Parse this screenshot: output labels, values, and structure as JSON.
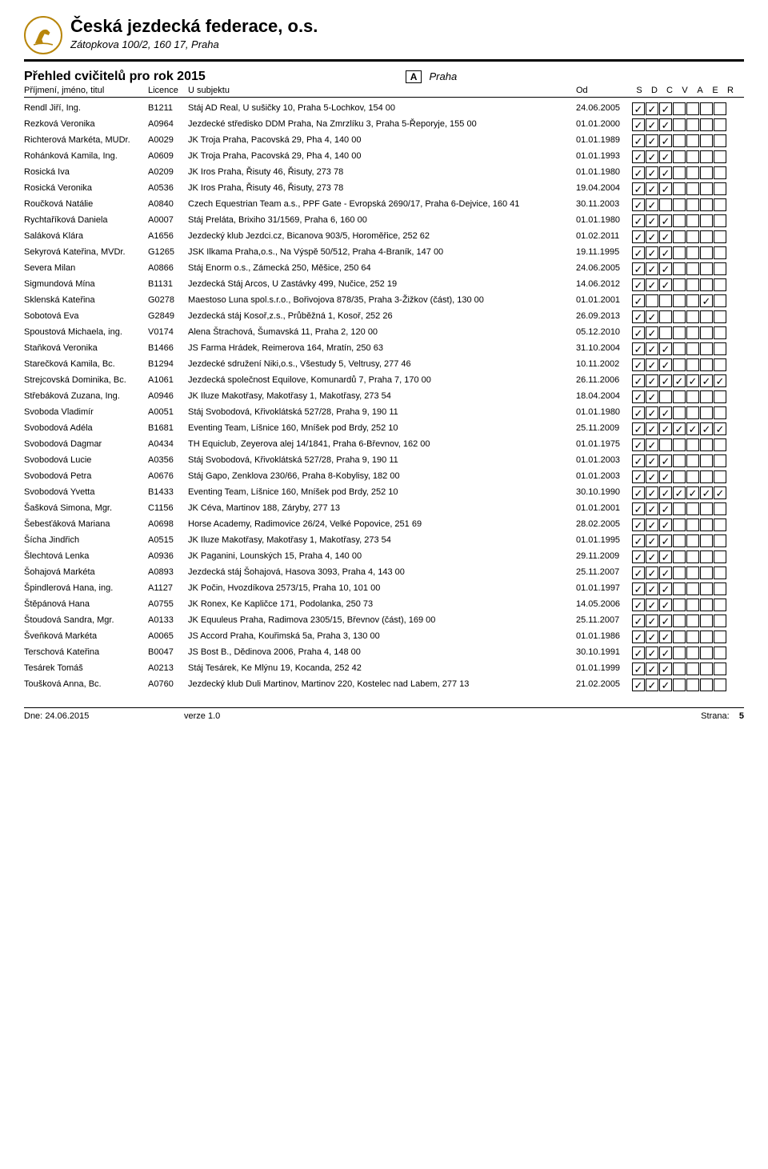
{
  "org": {
    "title": "Česká jezdecká federace, o.s.",
    "subtitle": "Zátopkova 100/2, 160 17, Praha"
  },
  "page": {
    "title": "Přehled cvičitelů pro rok 2015",
    "region_code": "A",
    "region_label": "Praha"
  },
  "columns": {
    "name": "Příjmení, jméno, titul",
    "licence": "Licence",
    "subject": "U subjektu",
    "od": "Od",
    "flags": [
      "S",
      "D",
      "C",
      "V",
      "A",
      "E",
      "R"
    ]
  },
  "rows": [
    {
      "name": "Rendl Jiří, Ing.",
      "lic": "B1211",
      "subj": "Stáj AD Real, U sušičky 10, Praha 5-Lochkov, 154 00",
      "od": "24.06.2005",
      "f": [
        1,
        1,
        1,
        0,
        0,
        0,
        0
      ]
    },
    {
      "name": "Rezková Veronika",
      "lic": "A0964",
      "subj": "Jezdecké středisko DDM Praha, Na Zmrzlíku 3, Praha 5-Řeporyje, 155 00",
      "od": "01.01.2000",
      "f": [
        1,
        1,
        1,
        0,
        0,
        0,
        0
      ]
    },
    {
      "name": "Richterová Markéta, MUDr.",
      "lic": "A0029",
      "subj": "JK Troja Praha, Pacovská 29, Pha 4, 140 00",
      "od": "01.01.1989",
      "f": [
        1,
        1,
        1,
        0,
        0,
        0,
        0
      ]
    },
    {
      "name": "Rohánková Kamila, Ing.",
      "lic": "A0609",
      "subj": "JK Troja Praha, Pacovská 29, Pha 4, 140 00",
      "od": "01.01.1993",
      "f": [
        1,
        1,
        1,
        0,
        0,
        0,
        0
      ]
    },
    {
      "name": "Rosická Iva",
      "lic": "A0209",
      "subj": "JK Iros Praha, Řisuty 46, Řisuty, 273 78",
      "od": "01.01.1980",
      "f": [
        1,
        1,
        1,
        0,
        0,
        0,
        0
      ]
    },
    {
      "name": "Rosická Veronika",
      "lic": "A0536",
      "subj": "JK Iros Praha, Řisuty 46, Řisuty, 273 78",
      "od": "19.04.2004",
      "f": [
        1,
        1,
        1,
        0,
        0,
        0,
        0
      ]
    },
    {
      "name": "Roučková Natálie",
      "lic": "A0840",
      "subj": "Czech Equestrian Team a.s., PPF Gate - Evropská 2690/17, Praha 6-Dejvice, 160 41",
      "od": "30.11.2003",
      "f": [
        1,
        1,
        0,
        0,
        0,
        0,
        0
      ]
    },
    {
      "name": "Rychtaříková Daniela",
      "lic": "A0007",
      "subj": "Stáj Preláta, Brixiho 31/1569, Praha 6, 160 00",
      "od": "01.01.1980",
      "f": [
        1,
        1,
        1,
        0,
        0,
        0,
        0
      ]
    },
    {
      "name": "Saláková Klára",
      "lic": "A1656",
      "subj": "Jezdecký klub Jezdci.cz, Bicanova 903/5, Horoměřice, 252 62",
      "od": "01.02.2011",
      "f": [
        1,
        1,
        1,
        0,
        0,
        0,
        0
      ]
    },
    {
      "name": "Sekyrová Kateřina, MVDr.",
      "lic": "G1265",
      "subj": "JSK Ilkama Praha,o.s., Na Výspě 50/512, Praha 4-Braník, 147 00",
      "od": "19.11.1995",
      "f": [
        1,
        1,
        1,
        0,
        0,
        0,
        0
      ]
    },
    {
      "name": "Severa Milan",
      "lic": "A0866",
      "subj": "Stáj Enorm o.s., Zámecká 250, Měšice, 250 64",
      "od": "24.06.2005",
      "f": [
        1,
        1,
        1,
        0,
        0,
        0,
        0
      ]
    },
    {
      "name": "Sigmundová Mína",
      "lic": "B1131",
      "subj": "Jezdecká Stáj Arcos, U Zastávky 499, Nučice, 252 19",
      "od": "14.06.2012",
      "f": [
        1,
        1,
        1,
        0,
        0,
        0,
        0
      ]
    },
    {
      "name": "Sklenská Kateřina",
      "lic": "G0278",
      "subj": "Maestoso Luna spol.s.r.o., Bořivojova 878/35, Praha 3-Žižkov (část), 130 00",
      "od": "01.01.2001",
      "f": [
        1,
        0,
        0,
        0,
        0,
        1,
        0
      ]
    },
    {
      "name": "Sobotová Eva",
      "lic": "G2849",
      "subj": "Jezdecká stáj Kosoř,z.s., Průběžná 1, Kosoř, 252 26",
      "od": "26.09.2013",
      "f": [
        1,
        1,
        0,
        0,
        0,
        0,
        0
      ]
    },
    {
      "name": "Spoustová Michaela, ing.",
      "lic": "V0174",
      "subj": "Alena Štrachová, Šumavská 11, Praha 2, 120 00",
      "od": "05.12.2010",
      "f": [
        1,
        1,
        0,
        0,
        0,
        0,
        0
      ]
    },
    {
      "name": "Staňková Veronika",
      "lic": "B1466",
      "subj": "JS Farma Hrádek, Reimerova 164, Mratín, 250 63",
      "od": "31.10.2004",
      "f": [
        1,
        1,
        1,
        0,
        0,
        0,
        0
      ]
    },
    {
      "name": "Starečková Kamila, Bc.",
      "lic": "B1294",
      "subj": "Jezdecké sdružení Niki,o.s., Všestudy 5, Veltrusy, 277 46",
      "od": "10.11.2002",
      "f": [
        1,
        1,
        1,
        0,
        0,
        0,
        0
      ]
    },
    {
      "name": "Strejcovská Dominika, Bc.",
      "lic": "A1061",
      "subj": "Jezdecká společnost Equilove, Komunardů 7, Praha 7, 170 00",
      "od": "26.11.2006",
      "f": [
        1,
        1,
        1,
        1,
        1,
        1,
        1
      ]
    },
    {
      "name": "Střebáková Zuzana, Ing.",
      "lic": "A0946",
      "subj": "JK Iluze Makotřasy, Makotřasy 1, Makotřasy, 273 54",
      "od": "18.04.2004",
      "f": [
        1,
        1,
        0,
        0,
        0,
        0,
        0
      ]
    },
    {
      "name": "Svoboda Vladimír",
      "lic": "A0051",
      "subj": "Stáj Svobodová, Křivoklátská 527/28, Praha 9, 190 11",
      "od": "01.01.1980",
      "f": [
        1,
        1,
        1,
        0,
        0,
        0,
        0
      ]
    },
    {
      "name": "Svobodová Adéla",
      "lic": "B1681",
      "subj": "Eventing Team, Líšnice 160, Mníšek pod Brdy, 252 10",
      "od": "25.11.2009",
      "f": [
        1,
        1,
        1,
        1,
        1,
        1,
        1
      ]
    },
    {
      "name": "Svobodová Dagmar",
      "lic": "A0434",
      "subj": "TH Equiclub, Zeyerova alej 14/1841, Praha 6-Břevnov, 162 00",
      "od": "01.01.1975",
      "f": [
        1,
        1,
        0,
        0,
        0,
        0,
        0
      ]
    },
    {
      "name": "Svobodová Lucie",
      "lic": "A0356",
      "subj": "Stáj Svobodová, Křivoklátská 527/28, Praha 9, 190 11",
      "od": "01.01.2003",
      "f": [
        1,
        1,
        1,
        0,
        0,
        0,
        0
      ]
    },
    {
      "name": "Svobodová Petra",
      "lic": "A0676",
      "subj": "Stáj Gapo, Zenklova 230/66, Praha 8-Kobylisy, 182 00",
      "od": "01.01.2003",
      "f": [
        1,
        1,
        1,
        0,
        0,
        0,
        0
      ]
    },
    {
      "name": "Svobodová Yvetta",
      "lic": "B1433",
      "subj": "Eventing Team, Líšnice 160, Mníšek pod Brdy, 252 10",
      "od": "30.10.1990",
      "f": [
        1,
        1,
        1,
        1,
        1,
        1,
        1
      ]
    },
    {
      "name": "Šašková Simona, Mgr.",
      "lic": "C1156",
      "subj": "JK Céva, Martinov 188, Záryby, 277 13",
      "od": "01.01.2001",
      "f": [
        1,
        1,
        1,
        0,
        0,
        0,
        0
      ]
    },
    {
      "name": "Šebesťáková Mariana",
      "lic": "A0698",
      "subj": "Horse Academy, Radimovice 26/24, Velké Popovice, 251 69",
      "od": "28.02.2005",
      "f": [
        1,
        1,
        1,
        0,
        0,
        0,
        0
      ]
    },
    {
      "name": "Šícha Jindřich",
      "lic": "A0515",
      "subj": "JK Iluze Makotřasy, Makotřasy 1, Makotřasy, 273 54",
      "od": "01.01.1995",
      "f": [
        1,
        1,
        1,
        0,
        0,
        0,
        0
      ]
    },
    {
      "name": "Šlechtová Lenka",
      "lic": "A0936",
      "subj": "JK Paganini, Lounských 15, Praha 4, 140 00",
      "od": "29.11.2009",
      "f": [
        1,
        1,
        1,
        0,
        0,
        0,
        0
      ]
    },
    {
      "name": "Šohajová Markéta",
      "lic": "A0893",
      "subj": "Jezdecká stáj Šohajová, Hasova 3093, Praha 4, 143 00",
      "od": "25.11.2007",
      "f": [
        1,
        1,
        1,
        0,
        0,
        0,
        0
      ]
    },
    {
      "name": "Špindlerová Hana, ing.",
      "lic": "A1127",
      "subj": "JK Počin, Hvozdíkova 2573/15, Praha 10, 101 00",
      "od": "01.01.1997",
      "f": [
        1,
        1,
        1,
        0,
        0,
        0,
        0
      ]
    },
    {
      "name": "Štěpánová Hana",
      "lic": "A0755",
      "subj": "JK Ronex, Ke Kapličce 171, Podolanka, 250 73",
      "od": "14.05.2006",
      "f": [
        1,
        1,
        1,
        0,
        0,
        0,
        0
      ]
    },
    {
      "name": "Štoudová Sandra, Mgr.",
      "lic": "A0133",
      "subj": "JK Equuleus Praha, Radimova 2305/15, Břevnov (část), 169 00",
      "od": "25.11.2007",
      "f": [
        1,
        1,
        1,
        0,
        0,
        0,
        0
      ]
    },
    {
      "name": "Šveňková Markéta",
      "lic": "A0065",
      "subj": "JS Accord Praha, Kouřimská 5a, Praha 3, 130 00",
      "od": "01.01.1986",
      "f": [
        1,
        1,
        1,
        0,
        0,
        0,
        0
      ]
    },
    {
      "name": "Terschová Kateřina",
      "lic": "B0047",
      "subj": "JS Bost B., Dědinova 2006, Praha 4, 148 00",
      "od": "30.10.1991",
      "f": [
        1,
        1,
        1,
        0,
        0,
        0,
        0
      ]
    },
    {
      "name": "Tesárek Tomáš",
      "lic": "A0213",
      "subj": "Stáj Tesárek, Ke Mlýnu 19, Kocanda, 252 42",
      "od": "01.01.1999",
      "f": [
        1,
        1,
        1,
        0,
        0,
        0,
        0
      ]
    },
    {
      "name": "Toušková Anna, Bc.",
      "lic": "A0760",
      "subj": "Jezdecký klub Duli Martinov, Martinov 220, Kostelec nad Labem, 277 13",
      "od": "21.02.2005",
      "f": [
        1,
        1,
        1,
        0,
        0,
        0,
        0
      ]
    }
  ],
  "footer": {
    "date_label": "Dne:",
    "date": "24.06.2015",
    "version": "verze 1.0",
    "page_label": "Strana:",
    "page_num": "5"
  }
}
